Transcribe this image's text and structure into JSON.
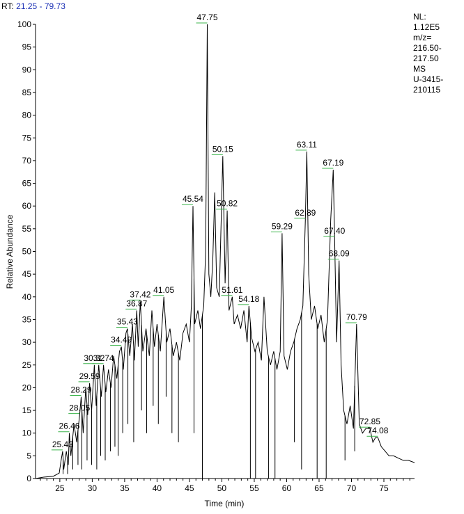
{
  "header": {
    "rt_label": "RT:",
    "rt_range": "21.25 - 79.73"
  },
  "info": {
    "nl_label": "NL:",
    "nl_value": "1.12E5",
    "mz_label": "m/z=",
    "mz_range_1": "216.50-",
    "mz_range_2": "217.50",
    "scan_type": "MS",
    "sample_1": "U-3415-",
    "sample_2": "210115"
  },
  "colors": {
    "trace": "#000000",
    "peak_label_line": "#3cb44b",
    "rt_value": "#1a2fb5"
  },
  "chart_data": {
    "type": "line",
    "xlabel": "Time (min)",
    "ylabel": "Relative Abundance",
    "xlim": [
      21.25,
      79.73
    ],
    "ylim": [
      0,
      100
    ],
    "xticks": [
      25,
      30,
      35,
      40,
      45,
      50,
      55,
      60,
      65,
      70,
      75
    ],
    "yticks": [
      0,
      5,
      10,
      15,
      20,
      25,
      30,
      35,
      40,
      45,
      50,
      55,
      60,
      65,
      70,
      75,
      80,
      85,
      90,
      95,
      100
    ],
    "series": [
      {
        "points": [
          [
            21.25,
            0
          ],
          [
            22.5,
            0.3
          ],
          [
            24.0,
            0.5
          ],
          [
            24.9,
            1.2
          ],
          [
            25.2,
            4
          ],
          [
            25.43,
            6
          ],
          [
            25.6,
            2
          ],
          [
            26.0,
            6
          ],
          [
            26.3,
            3
          ],
          [
            26.46,
            10
          ],
          [
            26.7,
            5
          ],
          [
            27.2,
            12
          ],
          [
            27.6,
            8
          ],
          [
            28.05,
            14
          ],
          [
            28.29,
            18
          ],
          [
            28.6,
            10
          ],
          [
            29.0,
            20
          ],
          [
            29.3,
            14
          ],
          [
            29.59,
            21
          ],
          [
            29.9,
            15
          ],
          [
            30.32,
            25
          ],
          [
            30.6,
            16
          ],
          [
            31.0,
            25
          ],
          [
            31.4,
            18
          ],
          [
            31.74,
            25
          ],
          [
            32.1,
            19
          ],
          [
            32.5,
            24
          ],
          [
            32.9,
            20
          ],
          [
            33.3,
            27
          ],
          [
            33.8,
            22
          ],
          [
            34.2,
            28
          ],
          [
            34.49,
            29
          ],
          [
            34.8,
            24
          ],
          [
            35.2,
            32
          ],
          [
            35.43,
            33
          ],
          [
            35.8,
            27
          ],
          [
            36.2,
            34
          ],
          [
            36.5,
            26
          ],
          [
            36.87,
            37
          ],
          [
            37.1,
            29
          ],
          [
            37.42,
            39
          ],
          [
            37.8,
            28
          ],
          [
            38.3,
            33
          ],
          [
            38.8,
            27
          ],
          [
            39.2,
            37
          ],
          [
            39.6,
            29
          ],
          [
            40.0,
            34
          ],
          [
            40.5,
            28
          ],
          [
            41.05,
            40
          ],
          [
            41.5,
            30
          ],
          [
            42.0,
            33
          ],
          [
            42.5,
            27
          ],
          [
            43.0,
            30
          ],
          [
            43.5,
            26
          ],
          [
            44.0,
            32
          ],
          [
            44.5,
            34
          ],
          [
            45.0,
            30
          ],
          [
            45.3,
            38
          ],
          [
            45.54,
            60
          ],
          [
            45.8,
            34
          ],
          [
            46.3,
            37
          ],
          [
            46.7,
            33
          ],
          [
            47.2,
            38
          ],
          [
            47.5,
            50
          ],
          [
            47.75,
            100
          ],
          [
            48.0,
            45
          ],
          [
            48.3,
            40
          ],
          [
            48.6,
            48
          ],
          [
            48.9,
            63
          ],
          [
            49.2,
            42
          ],
          [
            49.6,
            40
          ],
          [
            50.15,
            71
          ],
          [
            50.5,
            43
          ],
          [
            50.82,
            59
          ],
          [
            51.1,
            37
          ],
          [
            51.61,
            40
          ],
          [
            51.9,
            34
          ],
          [
            52.4,
            36
          ],
          [
            52.9,
            33
          ],
          [
            53.4,
            37
          ],
          [
            53.9,
            30
          ],
          [
            54.18,
            38
          ],
          [
            54.6,
            31
          ],
          [
            55.1,
            28
          ],
          [
            55.6,
            30
          ],
          [
            56.1,
            26
          ],
          [
            56.5,
            40
          ],
          [
            57.0,
            28
          ],
          [
            57.5,
            25
          ],
          [
            58.0,
            28
          ],
          [
            58.5,
            24
          ],
          [
            59.0,
            28
          ],
          [
            59.29,
            54
          ],
          [
            59.6,
            27
          ],
          [
            60.1,
            24
          ],
          [
            60.6,
            28
          ],
          [
            61.1,
            30
          ],
          [
            61.6,
            33
          ],
          [
            62.1,
            35
          ],
          [
            62.5,
            38
          ],
          [
            62.89,
            57
          ],
          [
            63.11,
            72
          ],
          [
            63.4,
            45
          ],
          [
            63.8,
            35
          ],
          [
            64.3,
            38
          ],
          [
            64.8,
            33
          ],
          [
            65.3,
            36
          ],
          [
            65.8,
            30
          ],
          [
            66.3,
            35
          ],
          [
            66.8,
            57
          ],
          [
            67.19,
            68
          ],
          [
            67.4,
            53
          ],
          [
            67.7,
            30
          ],
          [
            68.09,
            48
          ],
          [
            68.4,
            25
          ],
          [
            68.8,
            15
          ],
          [
            69.3,
            12
          ],
          [
            69.8,
            16
          ],
          [
            70.3,
            11
          ],
          [
            70.79,
            34
          ],
          [
            71.2,
            12
          ],
          [
            71.7,
            10
          ],
          [
            72.2,
            11
          ],
          [
            72.85,
            11
          ],
          [
            73.3,
            8
          ],
          [
            73.7,
            9
          ],
          [
            74.08,
            9
          ],
          [
            74.6,
            7
          ],
          [
            75.2,
            6
          ],
          [
            75.8,
            5
          ],
          [
            76.5,
            5
          ],
          [
            77.2,
            4.5
          ],
          [
            78.0,
            4
          ],
          [
            78.8,
            4
          ],
          [
            79.73,
            3.5
          ]
        ]
      }
    ],
    "drops": [
      [
        25.5,
        1
      ],
      [
        26.2,
        1
      ],
      [
        27.0,
        2
      ],
      [
        27.8,
        3
      ],
      [
        28.4,
        2
      ],
      [
        29.2,
        4
      ],
      [
        29.9,
        3
      ],
      [
        30.7,
        2
      ],
      [
        31.3,
        5
      ],
      [
        32.0,
        4
      ],
      [
        32.8,
        6
      ],
      [
        33.5,
        7
      ],
      [
        34.0,
        5
      ],
      [
        34.7,
        10
      ],
      [
        35.5,
        12
      ],
      [
        36.4,
        8
      ],
      [
        37.6,
        15
      ],
      [
        38.4,
        10
      ],
      [
        39.4,
        16
      ],
      [
        40.2,
        12
      ],
      [
        41.4,
        18
      ],
      [
        42.3,
        10
      ],
      [
        43.3,
        8
      ],
      [
        45.7,
        10
      ],
      [
        47.0,
        0
      ],
      [
        54.4,
        0
      ],
      [
        55.2,
        0
      ],
      [
        57.2,
        0
      ],
      [
        58.2,
        0
      ],
      [
        61.2,
        8
      ],
      [
        62.3,
        2
      ],
      [
        64.7,
        0
      ],
      [
        66.1,
        0
      ],
      [
        69.0,
        4
      ],
      [
        70.5,
        6
      ]
    ],
    "peak_labels": [
      {
        "x": 25.43,
        "y": 6,
        "label": "25.43"
      },
      {
        "x": 26.46,
        "y": 10,
        "label": "26.46"
      },
      {
        "x": 28.05,
        "y": 14,
        "label": "28.05"
      },
      {
        "x": 28.29,
        "y": 18,
        "label": "28.29"
      },
      {
        "x": 29.59,
        "y": 21,
        "label": "29.59"
      },
      {
        "x": 30.32,
        "y": 25,
        "label": "30.32"
      },
      {
        "x": 31.74,
        "y": 25,
        "label": "31.74"
      },
      {
        "x": 34.49,
        "y": 29,
        "label": "34.49"
      },
      {
        "x": 35.43,
        "y": 33,
        "label": "35.43"
      },
      {
        "x": 36.87,
        "y": 37,
        "label": "36.87"
      },
      {
        "x": 37.42,
        "y": 39,
        "label": "37.42"
      },
      {
        "x": 41.05,
        "y": 40,
        "label": "41.05"
      },
      {
        "x": 45.54,
        "y": 60,
        "label": "45.54"
      },
      {
        "x": 47.75,
        "y": 100,
        "label": "47.75"
      },
      {
        "x": 50.15,
        "y": 71,
        "label": "50.15"
      },
      {
        "x": 50.82,
        "y": 59,
        "label": "50.82"
      },
      {
        "x": 51.61,
        "y": 40,
        "label": "51.61"
      },
      {
        "x": 54.18,
        "y": 38,
        "label": "54.18"
      },
      {
        "x": 59.29,
        "y": 54,
        "label": "59.29"
      },
      {
        "x": 62.89,
        "y": 57,
        "label": "62.89"
      },
      {
        "x": 63.11,
        "y": 72,
        "label": "63.11"
      },
      {
        "x": 67.19,
        "y": 68,
        "label": "67.19"
      },
      {
        "x": 67.4,
        "y": 53,
        "label": "67.40"
      },
      {
        "x": 68.09,
        "y": 48,
        "label": "68.09"
      },
      {
        "x": 70.79,
        "y": 34,
        "label": "70.79"
      },
      {
        "x": 72.85,
        "y": 11,
        "label": "72.85"
      },
      {
        "x": 74.08,
        "y": 9,
        "label": "74.08"
      }
    ]
  }
}
